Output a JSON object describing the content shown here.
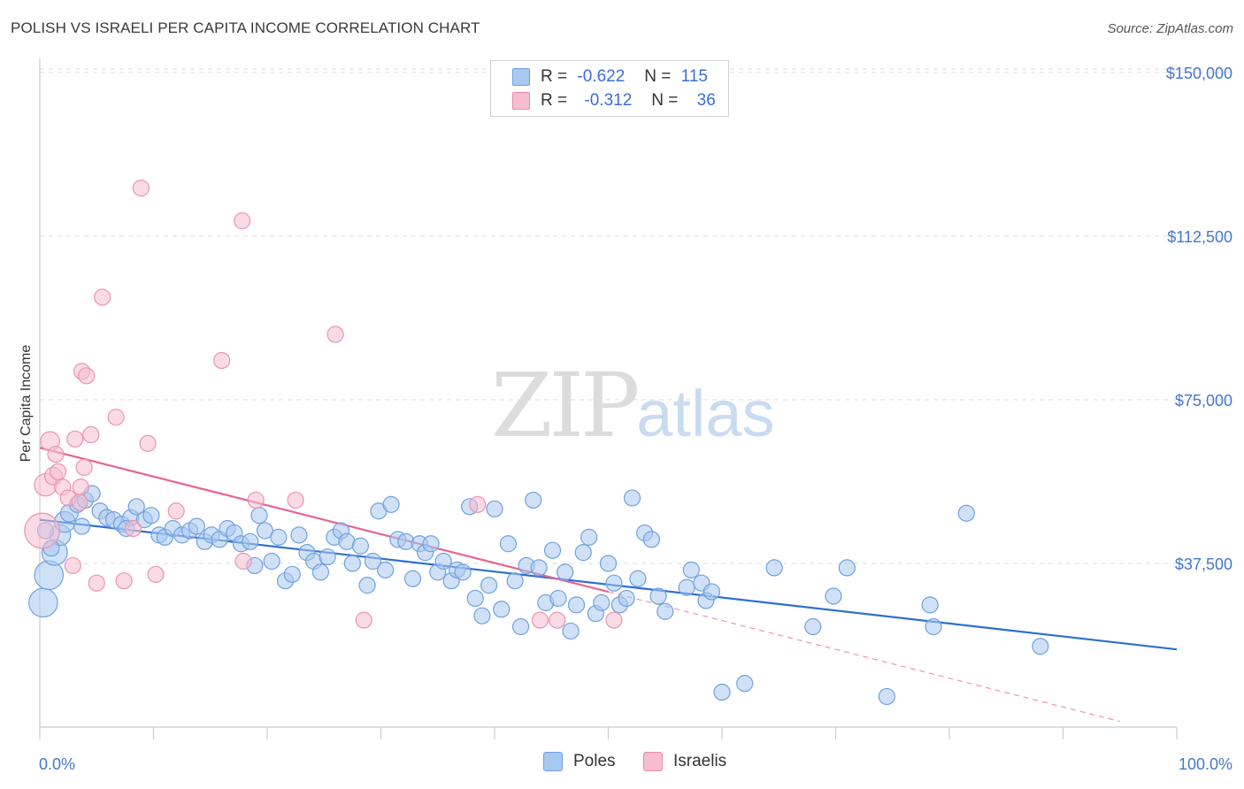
{
  "title": "POLISH VS ISRAELI PER CAPITA INCOME CORRELATION CHART",
  "source": "Source: ZipAtlas.com",
  "watermark": {
    "zip": "ZIP",
    "atlas": "atlas"
  },
  "legend_stats": [
    {
      "r_label": "R =",
      "r_value": "-0.622",
      "n_label": "N =",
      "n_value": "115",
      "color": "#a9c8f0",
      "border": "#6f9edf"
    },
    {
      "r_label": "R =",
      "r_value": "-0.312",
      "n_label": "N =",
      "n_value": "36",
      "color": "#f6bdd0",
      "border": "#e98aa9"
    }
  ],
  "chart_data": {
    "type": "scatter",
    "title": "POLISH VS ISRAELI PER CAPITA INCOME CORRELATION CHART",
    "xlabel": "",
    "ylabel": "Per Capita Income",
    "xlim": [
      0,
      100
    ],
    "ylim": [
      0,
      152000
    ],
    "x_tick_labels": [
      "0.0%",
      "100.0%"
    ],
    "y_ticks": [
      37500,
      75000,
      112500,
      150000
    ],
    "y_tick_labels": [
      "$37,500",
      "$75,000",
      "$112,500",
      "$150,000"
    ],
    "grid": true,
    "legend_position": "bottom",
    "series": [
      {
        "name": "Poles",
        "color": "#6fa1e0",
        "fill": "#a9c8f0",
        "trend_color": "#2f6fd0",
        "trend": {
          "x": [
            0,
            100
          ],
          "y": [
            47500,
            17800
          ]
        },
        "points": [
          [
            0.3,
            28500,
            1.8
          ],
          [
            0.8,
            34800,
            1.8
          ],
          [
            1.3,
            40000,
            1.6
          ],
          [
            1.8,
            44000,
            1.3
          ],
          [
            2.2,
            47000,
            1.3
          ],
          [
            2.6,
            49000,
            1.1
          ],
          [
            3.3,
            51000,
            1
          ],
          [
            4.0,
            52000,
            1
          ],
          [
            4.6,
            53500,
            1
          ],
          [
            5.3,
            49500,
            1
          ],
          [
            5.9,
            48000,
            1
          ],
          [
            6.5,
            47500,
            1
          ],
          [
            7.2,
            46500,
            1
          ],
          [
            8.0,
            48000,
            1
          ],
          [
            8.5,
            50500,
            1
          ],
          [
            9.2,
            47500,
            1
          ],
          [
            9.8,
            48500,
            1
          ],
          [
            10.5,
            44000,
            1
          ],
          [
            11.0,
            43500,
            1
          ],
          [
            11.7,
            45500,
            1
          ],
          [
            12.5,
            44000,
            1
          ],
          [
            13.2,
            45000,
            1
          ],
          [
            13.8,
            46000,
            1
          ],
          [
            14.5,
            42500,
            1
          ],
          [
            15.1,
            44000,
            1
          ],
          [
            15.8,
            43000,
            1
          ],
          [
            16.5,
            45500,
            1
          ],
          [
            17.1,
            44500,
            1
          ],
          [
            17.7,
            42000,
            1
          ],
          [
            18.5,
            42500,
            1
          ],
          [
            18.9,
            37000,
            1
          ],
          [
            19.3,
            48500,
            1
          ],
          [
            19.8,
            45000,
            1
          ],
          [
            20.4,
            38000,
            1
          ],
          [
            21.0,
            43500,
            1
          ],
          [
            21.6,
            33500,
            1
          ],
          [
            22.2,
            35000,
            1
          ],
          [
            22.8,
            44000,
            1
          ],
          [
            23.5,
            40000,
            1
          ],
          [
            24.1,
            38000,
            1
          ],
          [
            24.7,
            35500,
            1
          ],
          [
            25.3,
            39000,
            1
          ],
          [
            25.9,
            43500,
            1
          ],
          [
            26.5,
            45000,
            1
          ],
          [
            27.0,
            42500,
            1
          ],
          [
            27.5,
            37500,
            1
          ],
          [
            28.2,
            41500,
            1
          ],
          [
            28.8,
            32500,
            1
          ],
          [
            29.3,
            38000,
            1
          ],
          [
            29.8,
            49500,
            1
          ],
          [
            30.4,
            36000,
            1
          ],
          [
            30.9,
            51000,
            1
          ],
          [
            31.5,
            43000,
            1
          ],
          [
            32.2,
            42500,
            1
          ],
          [
            32.8,
            34000,
            1
          ],
          [
            33.4,
            42000,
            1
          ],
          [
            33.9,
            40000,
            1
          ],
          [
            34.4,
            42000,
            1
          ],
          [
            35.0,
            35500,
            1
          ],
          [
            35.5,
            38000,
            1
          ],
          [
            36.2,
            33500,
            1
          ],
          [
            36.7,
            36000,
            1
          ],
          [
            37.2,
            35500,
            1
          ],
          [
            37.8,
            50500,
            1
          ],
          [
            38.3,
            29500,
            1
          ],
          [
            38.9,
            25500,
            1
          ],
          [
            39.5,
            32500,
            1
          ],
          [
            40.0,
            50000,
            1
          ],
          [
            40.6,
            27000,
            1
          ],
          [
            41.2,
            42000,
            1
          ],
          [
            41.8,
            33500,
            1
          ],
          [
            42.3,
            23000,
            1
          ],
          [
            42.8,
            37000,
            1
          ],
          [
            43.4,
            52000,
            1
          ],
          [
            43.9,
            36500,
            1
          ],
          [
            44.5,
            28500,
            1
          ],
          [
            45.1,
            40500,
            1
          ],
          [
            45.6,
            29500,
            1
          ],
          [
            46.2,
            35500,
            1
          ],
          [
            46.7,
            22000,
            1
          ],
          [
            47.2,
            28000,
            1
          ],
          [
            47.8,
            40000,
            1
          ],
          [
            48.3,
            43500,
            1
          ],
          [
            48.9,
            26000,
            1
          ],
          [
            49.4,
            28500,
            1
          ],
          [
            50.0,
            37500,
            1
          ],
          [
            50.5,
            33000,
            1
          ],
          [
            51.0,
            28000,
            1
          ],
          [
            51.6,
            29500,
            1
          ],
          [
            52.1,
            52500,
            1
          ],
          [
            52.6,
            34000,
            1
          ],
          [
            53.2,
            44500,
            1
          ],
          [
            53.8,
            43000,
            1
          ],
          [
            54.4,
            30000,
            1
          ],
          [
            55.0,
            26500,
            1
          ],
          [
            56.9,
            32000,
            1
          ],
          [
            57.3,
            36000,
            1
          ],
          [
            58.2,
            33000,
            1
          ],
          [
            58.6,
            29000,
            1
          ],
          [
            59.1,
            31000,
            1
          ],
          [
            60.0,
            8000,
            1
          ],
          [
            62.0,
            10000,
            1
          ],
          [
            64.6,
            36500,
            1
          ],
          [
            68.0,
            23000,
            1
          ],
          [
            69.8,
            30000,
            1
          ],
          [
            71.0,
            36500,
            1
          ],
          [
            74.5,
            7000,
            1
          ],
          [
            78.3,
            28000,
            1
          ],
          [
            78.6,
            23000,
            1
          ],
          [
            81.5,
            49000,
            1
          ],
          [
            88.0,
            18500,
            1
          ],
          [
            0.5,
            45000,
            1
          ],
          [
            1.0,
            41000,
            1
          ],
          [
            3.7,
            46000,
            1
          ],
          [
            7.6,
            45500,
            1
          ]
        ]
      },
      {
        "name": "Israelis",
        "color": "#ec93b1",
        "fill": "#f6bdd0",
        "trend_color": "#e8648f",
        "trend": {
          "x": [
            0,
            50
          ],
          "y": [
            64000,
            31000
          ]
        },
        "trend_extension": {
          "x": [
            50,
            95
          ],
          "y": [
            31000,
            1300
          ]
        },
        "points": [
          [
            0.2,
            45000,
            2.2
          ],
          [
            0.5,
            55500,
            1.4
          ],
          [
            0.9,
            65500,
            1.2
          ],
          [
            1.2,
            57500,
            1.1
          ],
          [
            1.4,
            62500,
            1
          ],
          [
            1.6,
            58500,
            1
          ],
          [
            2.0,
            55000,
            1
          ],
          [
            2.5,
            52500,
            1
          ],
          [
            2.9,
            37000,
            1
          ],
          [
            3.1,
            66000,
            1
          ],
          [
            3.5,
            51500,
            1
          ],
          [
            3.6,
            55000,
            1
          ],
          [
            3.7,
            81500,
            1
          ],
          [
            3.9,
            59500,
            1
          ],
          [
            4.1,
            80500,
            1
          ],
          [
            4.5,
            67000,
            1
          ],
          [
            5.0,
            33000,
            1
          ],
          [
            5.5,
            98500,
            1
          ],
          [
            6.7,
            71000,
            1
          ],
          [
            7.4,
            33500,
            1
          ],
          [
            8.2,
            45500,
            1
          ],
          [
            8.9,
            123500,
            1
          ],
          [
            9.5,
            65000,
            1
          ],
          [
            10.2,
            35000,
            1
          ],
          [
            12.0,
            49500,
            1
          ],
          [
            16.0,
            84000,
            1
          ],
          [
            17.8,
            116000,
            1
          ],
          [
            17.9,
            38000,
            1
          ],
          [
            19.0,
            52000,
            1
          ],
          [
            22.5,
            52000,
            1
          ],
          [
            26.0,
            90000,
            1
          ],
          [
            28.5,
            24500,
            1
          ],
          [
            38.5,
            51000,
            1
          ],
          [
            44.0,
            24500,
            1
          ],
          [
            45.5,
            24500,
            1
          ],
          [
            50.5,
            24500,
            1
          ]
        ]
      }
    ]
  }
}
